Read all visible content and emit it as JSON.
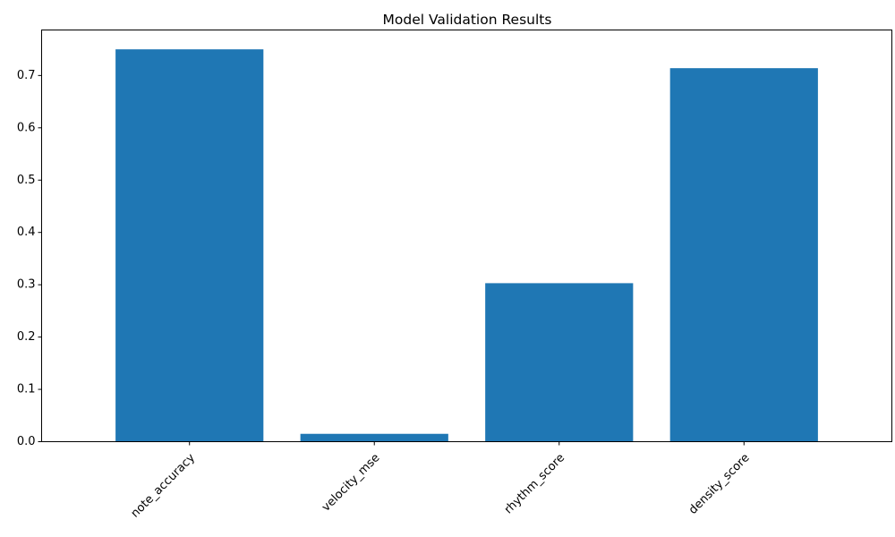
{
  "chart_data": {
    "type": "bar",
    "title": "Model Validation Results",
    "xlabel": "",
    "ylabel": "",
    "categories": [
      "note_accuracy",
      "velocity_mse",
      "rhythm_score",
      "density_score"
    ],
    "values": [
      0.75,
      0.015,
      0.303,
      0.714
    ],
    "ylim": [
      0,
      0.787
    ],
    "yticks": [
      "0.0",
      "0.1",
      "0.2",
      "0.3",
      "0.4",
      "0.5",
      "0.6",
      "0.7"
    ],
    "xtick_rotation_deg": 45,
    "grid": false,
    "legend": "none",
    "bar_color": "#1f77b4"
  }
}
